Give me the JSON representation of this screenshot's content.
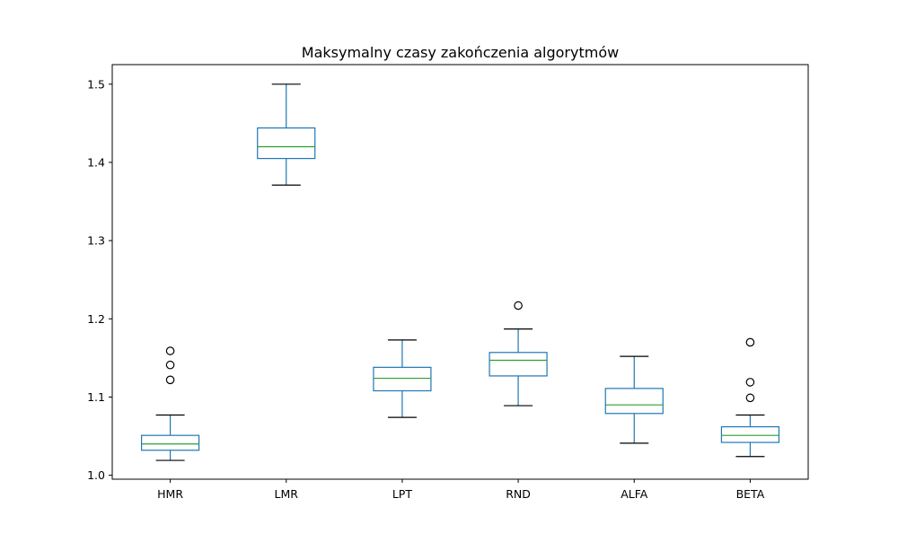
{
  "chart_data": {
    "type": "box",
    "title": "Maksymalny czasy zakończenia algorytmów",
    "xlabel": "",
    "ylabel": "",
    "ylim": [
      0.995,
      1.525
    ],
    "yticks": [
      1.0,
      1.1,
      1.2,
      1.3,
      1.4,
      1.5
    ],
    "ytick_labels": [
      "1.0",
      "1.1",
      "1.2",
      "1.3",
      "1.4",
      "1.5"
    ],
    "grid": false,
    "legend": false,
    "colors": {
      "box": "#1f77b4",
      "median": "#2ca02c",
      "cap": "#000000",
      "flier": "#000000"
    },
    "categories": [
      "HMR",
      "LMR",
      "LPT",
      "RND",
      "ALFA",
      "BETA"
    ],
    "boxes": [
      {
        "label": "HMR",
        "whisker_low": 1.019,
        "q1": 1.032,
        "median": 1.04,
        "q3": 1.051,
        "whisker_high": 1.077,
        "fliers": [
          1.122,
          1.141,
          1.159
        ]
      },
      {
        "label": "LMR",
        "whisker_low": 1.371,
        "q1": 1.405,
        "median": 1.42,
        "q3": 1.444,
        "whisker_high": 1.5,
        "fliers": []
      },
      {
        "label": "LPT",
        "whisker_low": 1.074,
        "q1": 1.108,
        "median": 1.124,
        "q3": 1.138,
        "whisker_high": 1.173,
        "fliers": []
      },
      {
        "label": "RND",
        "whisker_low": 1.089,
        "q1": 1.127,
        "median": 1.147,
        "q3": 1.157,
        "whisker_high": 1.187,
        "fliers": [
          1.217
        ]
      },
      {
        "label": "ALFA",
        "whisker_low": 1.041,
        "q1": 1.079,
        "median": 1.09,
        "q3": 1.111,
        "whisker_high": 1.152,
        "fliers": []
      },
      {
        "label": "BETA",
        "whisker_low": 1.024,
        "q1": 1.042,
        "median": 1.051,
        "q3": 1.062,
        "whisker_high": 1.077,
        "fliers": [
          1.099,
          1.119,
          1.17
        ]
      }
    ]
  }
}
